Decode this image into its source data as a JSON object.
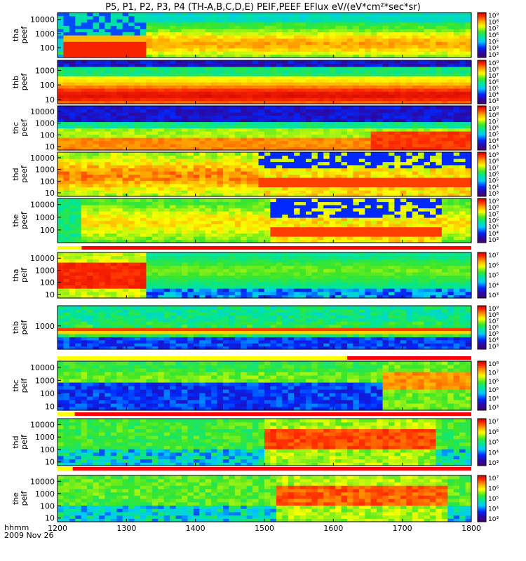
{
  "title": "P5, P1, P2, P3, P4 (TH-A,B,C,D,E) PEIF,PEEF EFlux eV/(eV*cm²*sec*sr)",
  "footer": {
    "axis_label": "hhmm",
    "date": "2009 Nov 26"
  },
  "colors": {
    "flag_yellow": "#ffff00",
    "flag_red": "#ff0000",
    "axis": "#000000"
  },
  "chart_data": {
    "type": "heatmap",
    "x_axis": {
      "label": "hhmm",
      "range": [
        1200,
        1800
      ],
      "tick_labels": [
        "1200",
        "1300",
        "1400",
        "1500",
        "1600",
        "1700",
        "1800"
      ]
    },
    "colorscale": "rainbow (purple-blue-cyan-green-yellow-red)",
    "panels": [
      {
        "id": "tha-peef",
        "ylabel": [
          "tha",
          "peef"
        ],
        "ylim": [
          20,
          30000
        ],
        "y_ticks": [
          "10000",
          "1000",
          "100"
        ],
        "clim": [
          1000,
          1000000000
        ],
        "colorbar_ticks": [
          "10⁹",
          "10⁸",
          "10⁷",
          "10⁶",
          "10⁵",
          "10⁴",
          "10³"
        ],
        "flag_bar": [],
        "profile": "tha_e"
      },
      {
        "id": "thb-peef",
        "ylabel": [
          "thb",
          "peef"
        ],
        "ylim": [
          5,
          5000
        ],
        "y_ticks": [
          "1000",
          "100",
          "10"
        ],
        "clim": [
          1000,
          1000000000
        ],
        "colorbar_ticks": [
          "10⁹",
          "10⁸",
          "10⁷",
          "10⁶",
          "10⁵",
          "10⁴",
          "10³"
        ],
        "flag_bar": [],
        "profile": "thb_e"
      },
      {
        "id": "thc-peef",
        "ylabel": [
          "thc",
          "peef"
        ],
        "ylim": [
          5,
          30000
        ],
        "y_ticks": [
          "10000",
          "1000",
          "100",
          "10"
        ],
        "clim": [
          1000,
          1000000000
        ],
        "colorbar_ticks": [
          "10⁹",
          "10⁸",
          "10⁷",
          "10⁶",
          "10⁵",
          "10⁴",
          "10³"
        ],
        "flag_bar": [],
        "profile": "thc_e"
      },
      {
        "id": "thd-peef",
        "ylabel": [
          "thd",
          "peef"
        ],
        "ylim": [
          5,
          30000
        ],
        "y_ticks": [
          "10000",
          "1000",
          "100",
          "10"
        ],
        "clim": [
          1000,
          1000000000
        ],
        "colorbar_ticks": [
          "10⁹",
          "10⁸",
          "10⁷",
          "10⁶",
          "10⁵",
          "10⁴",
          "10³"
        ],
        "flag_bar": [],
        "profile": "thd_e"
      },
      {
        "id": "the-peef",
        "ylabel": [
          "the",
          "peef"
        ],
        "ylim": [
          10,
          30000
        ],
        "y_ticks": [
          "10000",
          "1000",
          "100"
        ],
        "clim": [
          1000,
          1000000000
        ],
        "colorbar_ticks": [
          "10⁹",
          "10⁸",
          "10⁷",
          "10⁶",
          "10⁵",
          "10⁴",
          "10³"
        ],
        "flag_bar": [
          {
            "color": "yellow",
            "x": [
              1200,
              1235
            ]
          },
          {
            "color": "red",
            "x": [
              1235,
              1800
            ]
          }
        ],
        "profile": "the_e"
      },
      {
        "id": "tha-peif",
        "ylabel": [
          "tha",
          "peif"
        ],
        "ylim": [
          5,
          30000
        ],
        "y_ticks": [
          "10000",
          "1000",
          "100",
          "10"
        ],
        "clim": [
          300,
          30000000
        ],
        "colorbar_ticks": [
          "10⁷",
          "10⁶",
          "10⁵",
          "10⁴",
          "10³"
        ],
        "flag_bar": [],
        "profile": "tha_i"
      },
      {
        "id": "thb-peif",
        "ylabel": [
          "thb",
          "peif"
        ],
        "ylim": [
          20,
          30000
        ],
        "y_ticks": [
          "1000"
        ],
        "clim": [
          1000,
          1000000000
        ],
        "colorbar_ticks": [
          "10⁹",
          "10⁸",
          "10⁷",
          "10⁶",
          "10⁵",
          "10⁴",
          "10³"
        ],
        "flag_bar": [
          {
            "color": "yellow",
            "x": [
              1200,
              1620
            ]
          },
          {
            "color": "red",
            "x": [
              1620,
              1800
            ]
          }
        ],
        "profile": "thb_i"
      },
      {
        "id": "thc-peif",
        "ylabel": [
          "thc",
          "peif"
        ],
        "ylim": [
          5,
          30000
        ],
        "y_ticks": [
          "10000",
          "1000",
          "100",
          "10"
        ],
        "clim": [
          300,
          300000000
        ],
        "colorbar_ticks": [
          "10⁸",
          "10⁷",
          "10⁶",
          "10⁵",
          "10⁴",
          "10³"
        ],
        "flag_bar": [
          {
            "color": "yellow",
            "x": [
              1200,
              1225
            ]
          },
          {
            "color": "red",
            "x": [
              1225,
              1800
            ]
          }
        ],
        "profile": "thc_i"
      },
      {
        "id": "thd-peif",
        "ylabel": [
          "thd",
          "peif"
        ],
        "ylim": [
          5,
          30000
        ],
        "y_ticks": [
          "10000",
          "1000",
          "100",
          "10"
        ],
        "clim": [
          300,
          30000000
        ],
        "colorbar_ticks": [
          "10⁷",
          "10⁶",
          "10⁵",
          "10⁴",
          "10³"
        ],
        "flag_bar": [
          {
            "color": "yellow",
            "x": [
              1200,
              1222
            ]
          },
          {
            "color": "red",
            "x": [
              1222,
              1800
            ]
          }
        ],
        "profile": "thd_i"
      },
      {
        "id": "the-peif",
        "ylabel": [
          "the",
          "peif"
        ],
        "ylim": [
          5,
          30000
        ],
        "y_ticks": [
          "10000",
          "1000",
          "100",
          "10"
        ],
        "clim": [
          300,
          30000000
        ],
        "colorbar_ticks": [
          "10⁷",
          "10⁶",
          "10⁵",
          "10⁴",
          "10³"
        ],
        "flag_bar": [],
        "profile": "the_i"
      }
    ]
  }
}
